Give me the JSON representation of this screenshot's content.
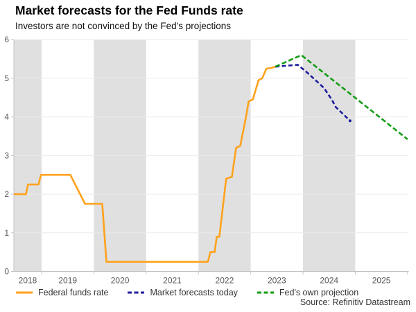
{
  "header": {
    "title": "Market forecasts for the Fed Funds rate",
    "subtitle": "Investors are not convinced by the Fed's projections"
  },
  "source": "Source: Refinitiv Datastream",
  "chart_data": {
    "type": "line",
    "title": "Market forecasts for the Fed Funds rate",
    "subtitle": "Investors are not convinced by the Fed's projections",
    "xlabel": "",
    "ylabel": "",
    "xlim": [
      2018.47,
      2026.02
    ],
    "ylim": [
      0,
      6
    ],
    "yticks": [
      0,
      1,
      2,
      3,
      4,
      5,
      6
    ],
    "xticks": [
      2018,
      2019,
      2020,
      2021,
      2022,
      2023,
      2024,
      2025
    ],
    "shaded_years": [
      2018,
      2020,
      2022,
      2024
    ],
    "grid": true,
    "legend_position": "bottom",
    "colors": {
      "band": "#e0e0e0",
      "grid": "#ebebeb",
      "axis": "#c2c2c2",
      "tick_label": "#595959"
    },
    "series": [
      {
        "name": "Federal funds rate",
        "color": "#FFA21C",
        "dash": null,
        "end_dot": false,
        "points": [
          [
            2018.47,
            2.0
          ],
          [
            2018.7,
            2.0
          ],
          [
            2018.74,
            2.25
          ],
          [
            2018.94,
            2.25
          ],
          [
            2018.99,
            2.5
          ],
          [
            2019.55,
            2.5
          ],
          [
            2019.83,
            1.75
          ],
          [
            2020.16,
            1.75
          ],
          [
            2020.24,
            0.25
          ],
          [
            2022.18,
            0.25
          ],
          [
            2022.23,
            0.5
          ],
          [
            2022.31,
            0.5
          ],
          [
            2022.35,
            0.9
          ],
          [
            2022.4,
            0.9
          ],
          [
            2022.53,
            2.4
          ],
          [
            2022.64,
            2.45
          ],
          [
            2022.72,
            3.2
          ],
          [
            2022.8,
            3.25
          ],
          [
            2022.91,
            4.0
          ],
          [
            2022.96,
            4.4
          ],
          [
            2023.04,
            4.45
          ],
          [
            2023.15,
            4.95
          ],
          [
            2023.22,
            5.0
          ],
          [
            2023.3,
            5.25
          ],
          [
            2023.4,
            5.27
          ],
          [
            2023.47,
            5.3
          ]
        ]
      },
      {
        "name": "Market forecasts today",
        "color": "#1D1D9E",
        "dash": [
          6,
          3.5
        ],
        "end_dot": true,
        "points": [
          [
            2023.47,
            5.3
          ],
          [
            2023.9,
            5.35
          ],
          [
            2024.08,
            5.15
          ],
          [
            2024.4,
            4.75
          ],
          [
            2024.55,
            4.45
          ],
          [
            2024.63,
            4.25
          ],
          [
            2024.9,
            3.9
          ]
        ]
      },
      {
        "name": "Fed's own projection",
        "color": "#149C14",
        "dash": [
          7,
          3.5
        ],
        "end_dot": false,
        "points": [
          [
            2023.47,
            5.3
          ],
          [
            2023.97,
            5.6
          ],
          [
            2026.0,
            3.42
          ]
        ]
      }
    ]
  }
}
